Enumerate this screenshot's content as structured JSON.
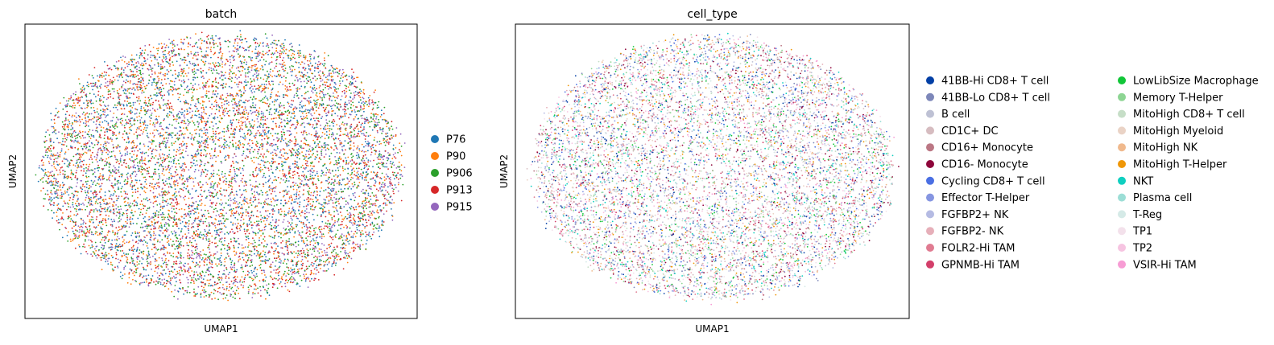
{
  "chart_data": [
    {
      "type": "scatter",
      "title": "batch",
      "xlabel": "UMAP1",
      "ylabel": "UMAP2",
      "grid": false,
      "legend_position": "right",
      "series": [
        {
          "name": "P76",
          "color": "#1f77b4"
        },
        {
          "name": "P90",
          "color": "#ff7f0e"
        },
        {
          "name": "P906",
          "color": "#2ca02c"
        },
        {
          "name": "P913",
          "color": "#d62728"
        },
        {
          "name": "P915",
          "color": "#9467bd"
        }
      ]
    },
    {
      "type": "scatter",
      "title": "cell_type",
      "xlabel": "UMAP1",
      "ylabel": "UMAP2",
      "grid": false,
      "legend_position": "right",
      "legend_columns": 2,
      "series": [
        {
          "name": "41BB-Hi CD8+ T cell",
          "color": "#023fa5"
        },
        {
          "name": "41BB-Lo CD8+ T cell",
          "color": "#7d87b9"
        },
        {
          "name": "B cell",
          "color": "#bec1d4"
        },
        {
          "name": "CD1C+ DC",
          "color": "#d6bcc0"
        },
        {
          "name": "CD16+ Monocyte",
          "color": "#bb7784"
        },
        {
          "name": "CD16- Monocyte",
          "color": "#8e063b"
        },
        {
          "name": "Cycling CD8+ T cell",
          "color": "#4a6fe3"
        },
        {
          "name": "Effector T-Helper",
          "color": "#8595e1"
        },
        {
          "name": "FGFBP2+ NK",
          "color": "#b5bbe3"
        },
        {
          "name": "FGFBP2- NK",
          "color": "#e6afb9"
        },
        {
          "name": "FOLR2-Hi TAM",
          "color": "#e07b91"
        },
        {
          "name": "GPNMB-Hi TAM",
          "color": "#d33f6a"
        },
        {
          "name": "LowLibSize Macrophage",
          "color": "#11c638"
        },
        {
          "name": "Memory T-Helper",
          "color": "#8dd593"
        },
        {
          "name": "MitoHigh CD8+ T cell",
          "color": "#c6dec7"
        },
        {
          "name": "MitoHigh Myeloid",
          "color": "#ead3c6"
        },
        {
          "name": "MitoHigh NK",
          "color": "#f0b98d"
        },
        {
          "name": "MitoHigh T-Helper",
          "color": "#ef9708"
        },
        {
          "name": "NKT",
          "color": "#0fcfc0"
        },
        {
          "name": "Plasma cell",
          "color": "#9cded6"
        },
        {
          "name": "T-Reg",
          "color": "#d5eae7"
        },
        {
          "name": "TP1",
          "color": "#f3e1eb"
        },
        {
          "name": "TP2",
          "color": "#f6c4e1"
        },
        {
          "name": "VSIR-Hi TAM",
          "color": "#f79cd4"
        }
      ]
    }
  ]
}
